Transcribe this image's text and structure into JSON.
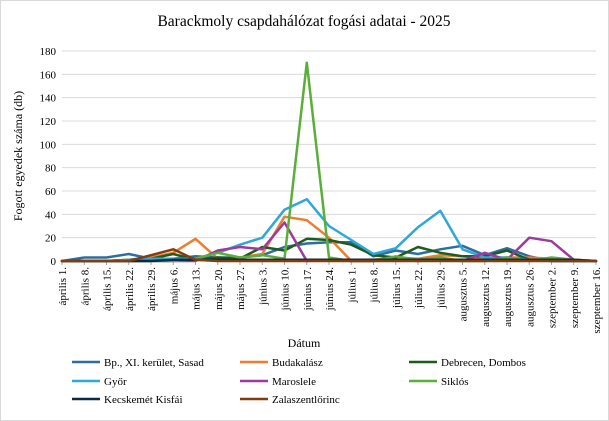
{
  "chart_data": {
    "type": "line",
    "title": "Barackmoly csapdahálózat fogási adatai - 2025",
    "xlabel": "Dátum",
    "ylabel": "Fogott egyedek száma (db)",
    "ylim": [
      0,
      180
    ],
    "yticks": [
      0,
      20,
      40,
      60,
      80,
      100,
      120,
      140,
      160,
      180
    ],
    "grid": true,
    "legend_position": "bottom",
    "categories": [
      "április 1.",
      "április 8.",
      "április 15.",
      "április 22.",
      "április 29.",
      "május 6.",
      "május 13.",
      "május 20.",
      "május 27.",
      "június 3.",
      "június 10.",
      "június 17.",
      "június 24.",
      "július 1.",
      "július 8.",
      "július 15.",
      "július 22.",
      "július 29.",
      "augusztus 5.",
      "augusztus 12.",
      "augusztus 19.",
      "augusztus 26.",
      "szeptember 2.",
      "szeptember 9.",
      "szeptember 16."
    ],
    "series": [
      {
        "name": "Bp., XI. kerület, Sasad",
        "color": "#2E6E9E",
        "values": [
          0,
          3,
          3,
          6,
          2,
          2,
          4,
          3,
          3,
          5,
          12,
          15,
          16,
          16,
          4,
          9,
          6,
          10,
          13,
          5,
          11,
          4,
          0,
          0,
          0
        ]
      },
      {
        "name": "Budakalász",
        "color": "#ED7D31",
        "values": [
          0,
          0,
          0,
          1,
          3,
          7,
          19,
          2,
          3,
          6,
          38,
          35,
          20,
          0,
          1,
          3,
          2,
          5,
          4,
          2,
          3,
          3,
          2,
          0,
          0
        ]
      },
      {
        "name": "Debrecen, Dombos",
        "color": "#1E5C1E",
        "values": [
          0,
          0,
          0,
          1,
          2,
          6,
          1,
          3,
          2,
          12,
          9,
          19,
          18,
          14,
          5,
          3,
          12,
          7,
          4,
          4,
          9,
          1,
          0,
          0,
          0
        ]
      },
      {
        "name": "Győr",
        "color": "#2EA8D8",
        "values": [
          0,
          0,
          0,
          1,
          2,
          2,
          2,
          7,
          14,
          20,
          44,
          53,
          30,
          18,
          6,
          11,
          29,
          43,
          10,
          3,
          3,
          1,
          0,
          0,
          0
        ]
      },
      {
        "name": "Maroslele",
        "color": "#9E3A9E",
        "values": [
          0,
          0,
          0,
          0,
          0,
          0,
          0,
          9,
          12,
          10,
          33,
          0,
          1,
          0,
          0,
          1,
          0,
          1,
          0,
          7,
          1,
          20,
          17,
          1,
          0
        ]
      },
      {
        "name": "Siklós",
        "color": "#5AAE3A",
        "values": [
          0,
          0,
          0,
          0,
          0,
          0,
          2,
          7,
          3,
          5,
          2,
          170,
          3,
          0,
          0,
          4,
          1,
          3,
          0,
          0,
          3,
          0,
          3,
          1,
          0
        ]
      },
      {
        "name": "Kecskemét Kisfái",
        "color": "#0B2A45",
        "values": [
          0,
          0,
          0,
          0,
          0,
          1,
          1,
          1,
          1,
          1,
          1,
          1,
          1,
          1,
          1,
          1,
          1,
          1,
          1,
          1,
          1,
          1,
          1,
          1,
          0
        ]
      },
      {
        "name": "Zalaszentlőrinc",
        "color": "#843C0C",
        "values": [
          0,
          0,
          0,
          0,
          5,
          10,
          1,
          0,
          0,
          0,
          0,
          0,
          0,
          0,
          0,
          0,
          0,
          0,
          0,
          0,
          0,
          0,
          0,
          0,
          0
        ]
      }
    ]
  }
}
